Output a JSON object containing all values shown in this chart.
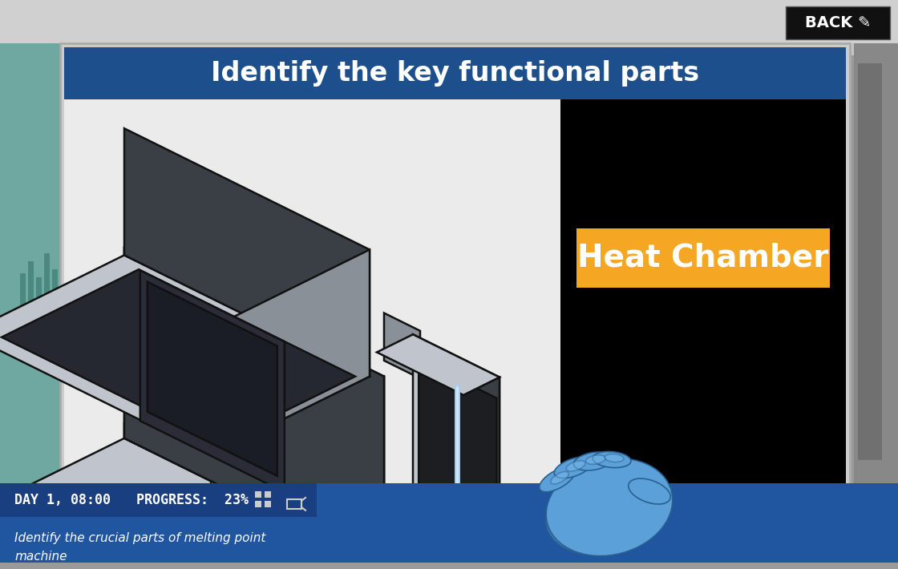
{
  "title": "Identify the key functional parts",
  "title_bg_color": "#1d4f8c",
  "title_text_color": "#ffffff",
  "board_bg_color": "#ebebeb",
  "right_panel_bg": "#000000",
  "label_box_color": "#f5a623",
  "label_text": "Heat Chamber",
  "label_text_color": "#ffffff",
  "bottom_bar_color": "#2055a0",
  "bottom_bar_dark": "#1a3f80",
  "bottom_bar_text1": "DAY 1, 08:00",
  "bottom_bar_text2": "PROGRESS:  23%",
  "bottom_subtitle": "Identify the crucial parts of melting point\nmachine",
  "back_button_bg": "#111111",
  "back_button_text_color": "#ffffff",
  "back_button_text": "BACK",
  "wall_color": "#9a9a9a",
  "wall_top_color": "#c5c5c5",
  "left_panel_color": "#6fa8a0",
  "board_border_color": "#d0d0d0",
  "c_light": "#c0c4cc",
  "c_mid": "#8a9098",
  "c_dark": "#3a3f45",
  "c_vdark": "#252830",
  "c_open": "#1c1e22",
  "c_top_body": "#b0b5bc",
  "c_door_frame": "#a0a5ac",
  "c_door_dark": "#50545a",
  "c_screen": "#2a2d38",
  "c_screen_inner": "#1a1c26",
  "c_btn": "#5a5f6a",
  "hand_color": "#5ba0d8",
  "hand_dark": "#4080b8"
}
